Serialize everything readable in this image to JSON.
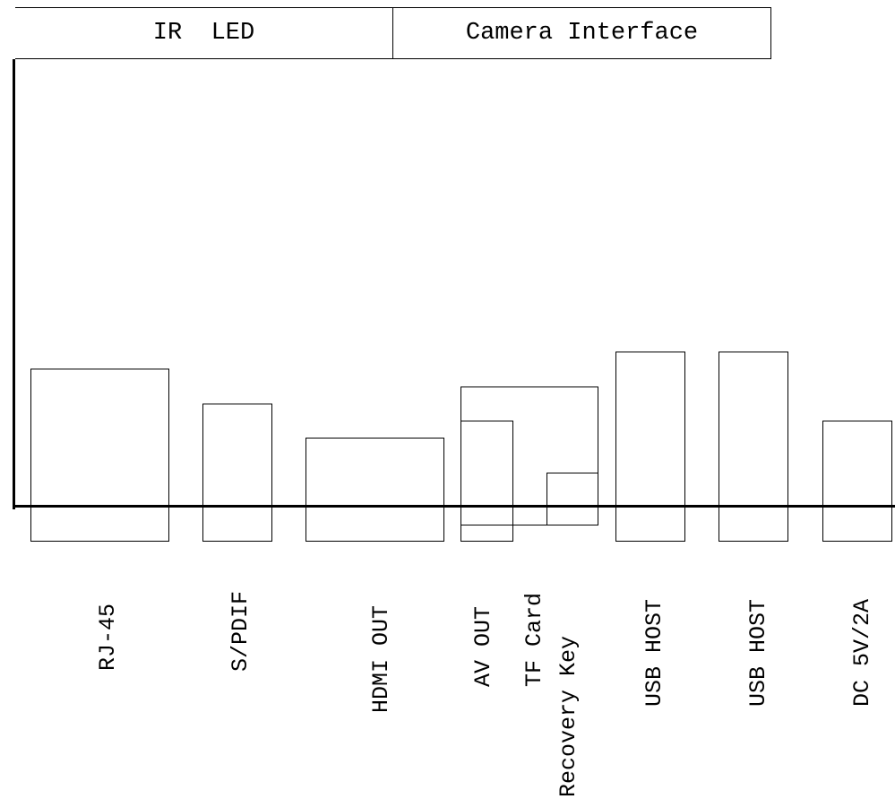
{
  "top_connectors": {
    "ir_led": "IR  LED",
    "camera_interface": "Camera Interface"
  },
  "ports": {
    "rj45": "RJ-45",
    "spdif": "S/PDIF",
    "hdmi_out": "HDMI OUT",
    "av_out": "AV OUT",
    "tf_card": "TF Card",
    "recovery_key": "Recovery Key",
    "usb_host_1": "USB HOST",
    "usb_host_2": "USB HOST",
    "dc_power": "DC 5V/2A"
  }
}
